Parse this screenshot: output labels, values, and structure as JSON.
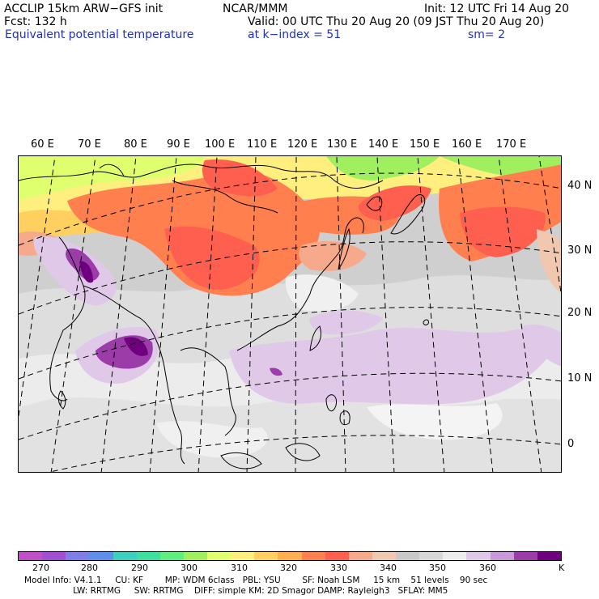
{
  "header": {
    "model": "ACCLIP 15km ARW−GFS init",
    "org": "NCAR/MMM",
    "init": "Init: 12 UTC Fri 14 Aug 20",
    "fcst": "Fcst:  132 h",
    "valid": "Valid: 00 UTC Thu 20 Aug 20 (09 JST Thu 20 Aug 20)",
    "field": "Equivalent potential temperature",
    "level": "at k−index =  51",
    "smooth": "sm= 2"
  },
  "map": {
    "lon_labels": [
      "60 E",
      "70 E",
      "80 E",
      "90 E",
      "100 E",
      "110 E",
      "120 E",
      "130 E",
      "140 E",
      "150 E",
      "160 E",
      "170 E"
    ],
    "lat_labels": [
      "40 N",
      "30 N",
      "20 N",
      "10 N",
      "0"
    ]
  },
  "colorbar": {
    "colors": [
      "#c14fc8",
      "#a34fd1",
      "#7f7fe8",
      "#5f8fe8",
      "#3fcfbf",
      "#3fdf9f",
      "#5fef7f",
      "#9fef5f",
      "#dfff6f",
      "#ffef7f",
      "#ffcf5f",
      "#ffaf4f",
      "#ff7f4f",
      "#ff5f4f",
      "#f7a98c",
      "#f0c8b0",
      "#c8c8c8",
      "#d8d8d8",
      "#ececec",
      "#e0c8e8",
      "#c89ad8",
      "#9b3ca8",
      "#6e007e"
    ],
    "tick_labels": [
      "270",
      "280",
      "290",
      "300",
      "310",
      "320",
      "330",
      "340",
      "350",
      "360",
      "K"
    ],
    "units": "K"
  },
  "footer": {
    "line1": "Model Info: V4.1.1     CU: KF        MP: WDM 6class   PBL: YSU        SF: Noah LSM     15 km    51 levels    90 sec",
    "line2": "                  LW: RRTMG     SW: RRTMG    DIFF: simple KM: 2D Smagor DAMP: Rayleigh3   SFLAY: MM5"
  }
}
